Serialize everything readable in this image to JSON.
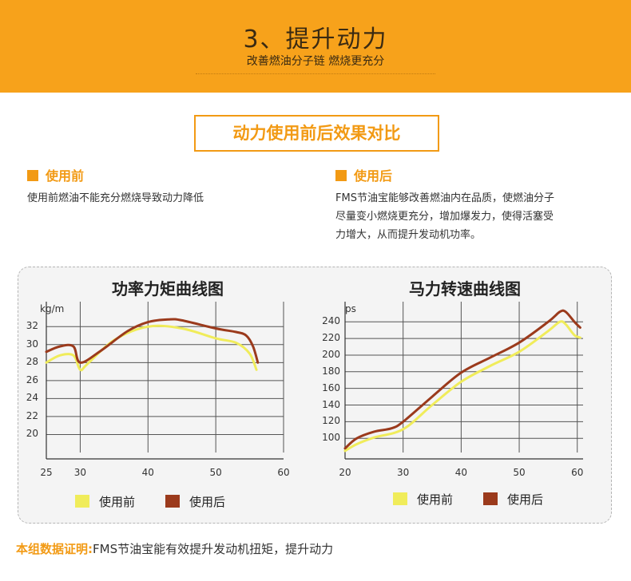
{
  "banner": {
    "title": "3、提升动力",
    "subtitle": "改善燃油分子链 燃烧更充分"
  },
  "compare_title": "动力使用前后效果对比",
  "before": {
    "heading": "使用前",
    "text": "使用前燃油不能充分燃烧导致动力降低"
  },
  "after": {
    "heading": "使用后",
    "lines": [
      "FMS节油宝能够改善燃油内在品质，使燃油分子",
      "尽量变小燃烧更充分，增加爆发力，使得活塞受",
      "力增大，从而提升发动机功率。"
    ]
  },
  "legend": {
    "before": "使用前",
    "after": "使用后"
  },
  "colors": {
    "accent": "#f29a14",
    "banner": "#f7a21b",
    "before": "#f0ec5a",
    "after": "#9b3a1c"
  },
  "footer": {
    "label": "本组数据证明:",
    "text": "FMS节油宝能有效提升发动机扭矩，提升动力"
  },
  "chart_data": [
    {
      "type": "line",
      "title": "功率力矩曲线图",
      "ylabel": "kg/m",
      "xlabel": "",
      "xlim": [
        25,
        60
      ],
      "ylim": [
        18,
        33
      ],
      "x_ticks": [
        25,
        30,
        40,
        50,
        60
      ],
      "y_ticks": [
        20,
        22,
        24,
        26,
        28,
        30,
        32
      ],
      "grid": true,
      "legend": "bottom",
      "series": [
        {
          "name": "使用前",
          "color": "#f0ec5a",
          "x": [
            25,
            27,
            29,
            30,
            31,
            35,
            40,
            45,
            50,
            53,
            55,
            56
          ],
          "y": [
            28,
            28.8,
            28.8,
            27.2,
            27.8,
            30.5,
            32,
            31.8,
            30.7,
            30.2,
            29,
            27.2
          ]
        },
        {
          "name": "使用后",
          "color": "#9b3a1c",
          "x": [
            25,
            27,
            29,
            30,
            33,
            37,
            40,
            43,
            45,
            50,
            53,
            54.5,
            55.5,
            56.2
          ],
          "y": [
            29.2,
            29.8,
            29.8,
            28,
            29.3,
            31.5,
            32.5,
            32.8,
            32.7,
            31.8,
            31.4,
            31,
            29.8,
            28
          ]
        }
      ]
    },
    {
      "type": "line",
      "title": "马力转速曲线图",
      "ylabel": "ps",
      "xlabel": "",
      "xlim": [
        20,
        61
      ],
      "ylim": [
        83,
        245
      ],
      "x_ticks": [
        20,
        30,
        40,
        50,
        60
      ],
      "y_ticks": [
        100,
        120,
        140,
        160,
        180,
        200,
        220,
        240
      ],
      "grid": true,
      "legend": "bottom",
      "series": [
        {
          "name": "使用前",
          "color": "#f0ec5a",
          "x": [
            20,
            22,
            25,
            30,
            35,
            40,
            45,
            50,
            55,
            57,
            58,
            59.5,
            60.5
          ],
          "y": [
            85,
            93,
            101,
            111,
            140,
            168,
            187,
            204,
            229,
            240,
            237,
            224,
            221
          ]
        },
        {
          "name": "使用后",
          "color": "#9b3a1c",
          "x": [
            20,
            22,
            25,
            28,
            30,
            35,
            40,
            45,
            50,
            55,
            57,
            58,
            59.5,
            60.5
          ],
          "y": [
            88,
            100,
            108,
            112,
            120,
            150,
            179,
            197,
            215,
            240,
            252,
            252,
            240,
            233
          ]
        }
      ]
    }
  ]
}
